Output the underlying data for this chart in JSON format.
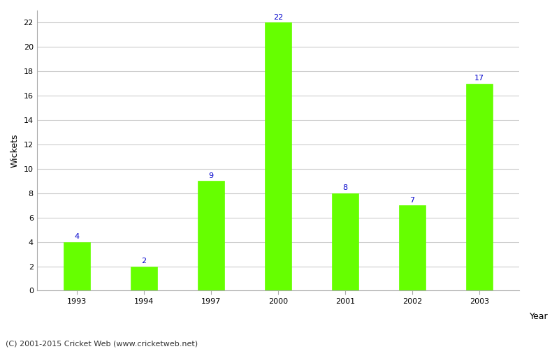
{
  "years": [
    "1993",
    "1994",
    "1997",
    "2000",
    "2001",
    "2002",
    "2003"
  ],
  "wickets": [
    4,
    2,
    9,
    22,
    8,
    7,
    17
  ],
  "bar_color": "#66ff00",
  "bar_edge_color": "#66ff00",
  "label_color": "#0000cc",
  "xlabel": "Year",
  "ylabel": "Wickets",
  "ylim": [
    0,
    23
  ],
  "yticks": [
    0,
    2,
    4,
    6,
    8,
    10,
    12,
    14,
    16,
    18,
    20,
    22
  ],
  "footer": "(C) 2001-2015 Cricket Web (www.cricketweb.net)",
  "background_color": "#ffffff",
  "grid_color": "#cccccc",
  "bar_width": 0.4,
  "label_fontsize": 8,
  "axis_label_fontsize": 9,
  "tick_fontsize": 8,
  "footer_fontsize": 8
}
